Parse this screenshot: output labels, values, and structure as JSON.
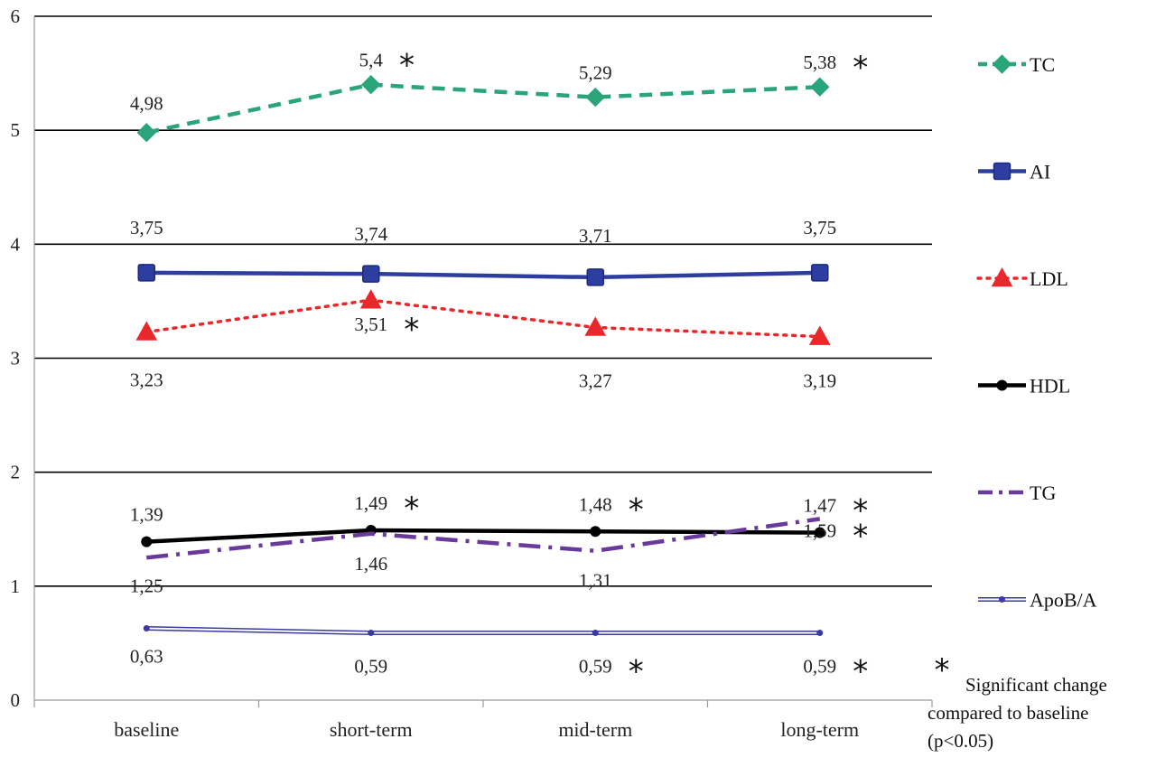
{
  "chart_data": {
    "type": "line",
    "categories": [
      "baseline",
      "short-term",
      "mid-term",
      "long-term"
    ],
    "ylim": [
      0,
      6
    ],
    "yticks": [
      "0",
      "1",
      "2",
      "3",
      "4",
      "5",
      "6"
    ],
    "grid": "horizontal",
    "legend_position": "right",
    "series": [
      {
        "name": "TC",
        "values": [
          4.98,
          5.4,
          5.29,
          5.38
        ],
        "labels": [
          "4,98",
          "5,4",
          "5,29",
          "5,38"
        ],
        "significant": [
          false,
          true,
          false,
          true
        ],
        "color": "#2aa57a",
        "marker": "diamond",
        "style": "dashed"
      },
      {
        "name": "AI",
        "values": [
          3.75,
          3.74,
          3.71,
          3.75
        ],
        "labels": [
          "3,75",
          "3,74",
          "3,71",
          "3,75"
        ],
        "significant": [
          false,
          false,
          false,
          false
        ],
        "color": "#2e3ea0",
        "marker": "square",
        "style": "solid"
      },
      {
        "name": "LDL",
        "values": [
          3.23,
          3.51,
          3.27,
          3.19
        ],
        "labels": [
          "3,23",
          "3,51",
          "3,27",
          "3,19"
        ],
        "significant": [
          false,
          true,
          false,
          false
        ],
        "color": "#e8282a",
        "marker": "triangle",
        "style": "dotted"
      },
      {
        "name": "HDL",
        "values": [
          1.39,
          1.49,
          1.48,
          1.47
        ],
        "labels": [
          "1,39",
          "1,49",
          "1,48",
          "1,47"
        ],
        "significant": [
          false,
          true,
          true,
          true
        ],
        "color": "#000000",
        "marker": "circle",
        "style": "solid"
      },
      {
        "name": "TG",
        "values": [
          1.25,
          1.46,
          1.31,
          1.59
        ],
        "labels": [
          "1,25",
          "1,46",
          "1,31",
          "1,59"
        ],
        "significant": [
          false,
          false,
          false,
          true
        ],
        "color": "#6a3a9a",
        "marker": "none",
        "style": "dashdot"
      },
      {
        "name": "ApoB/A",
        "values": [
          0.63,
          0.59,
          0.59,
          0.59
        ],
        "labels": [
          "0,63",
          "0,59",
          "0,59",
          "0,59"
        ],
        "significant": [
          false,
          false,
          true,
          true
        ],
        "color": "#3a3aa0",
        "marker": "small",
        "style": "double"
      }
    ],
    "significance_symbol": "*",
    "footnote_lines": [
      "Significant change",
      "compared to  baseline",
      "(p<0.05)"
    ]
  }
}
